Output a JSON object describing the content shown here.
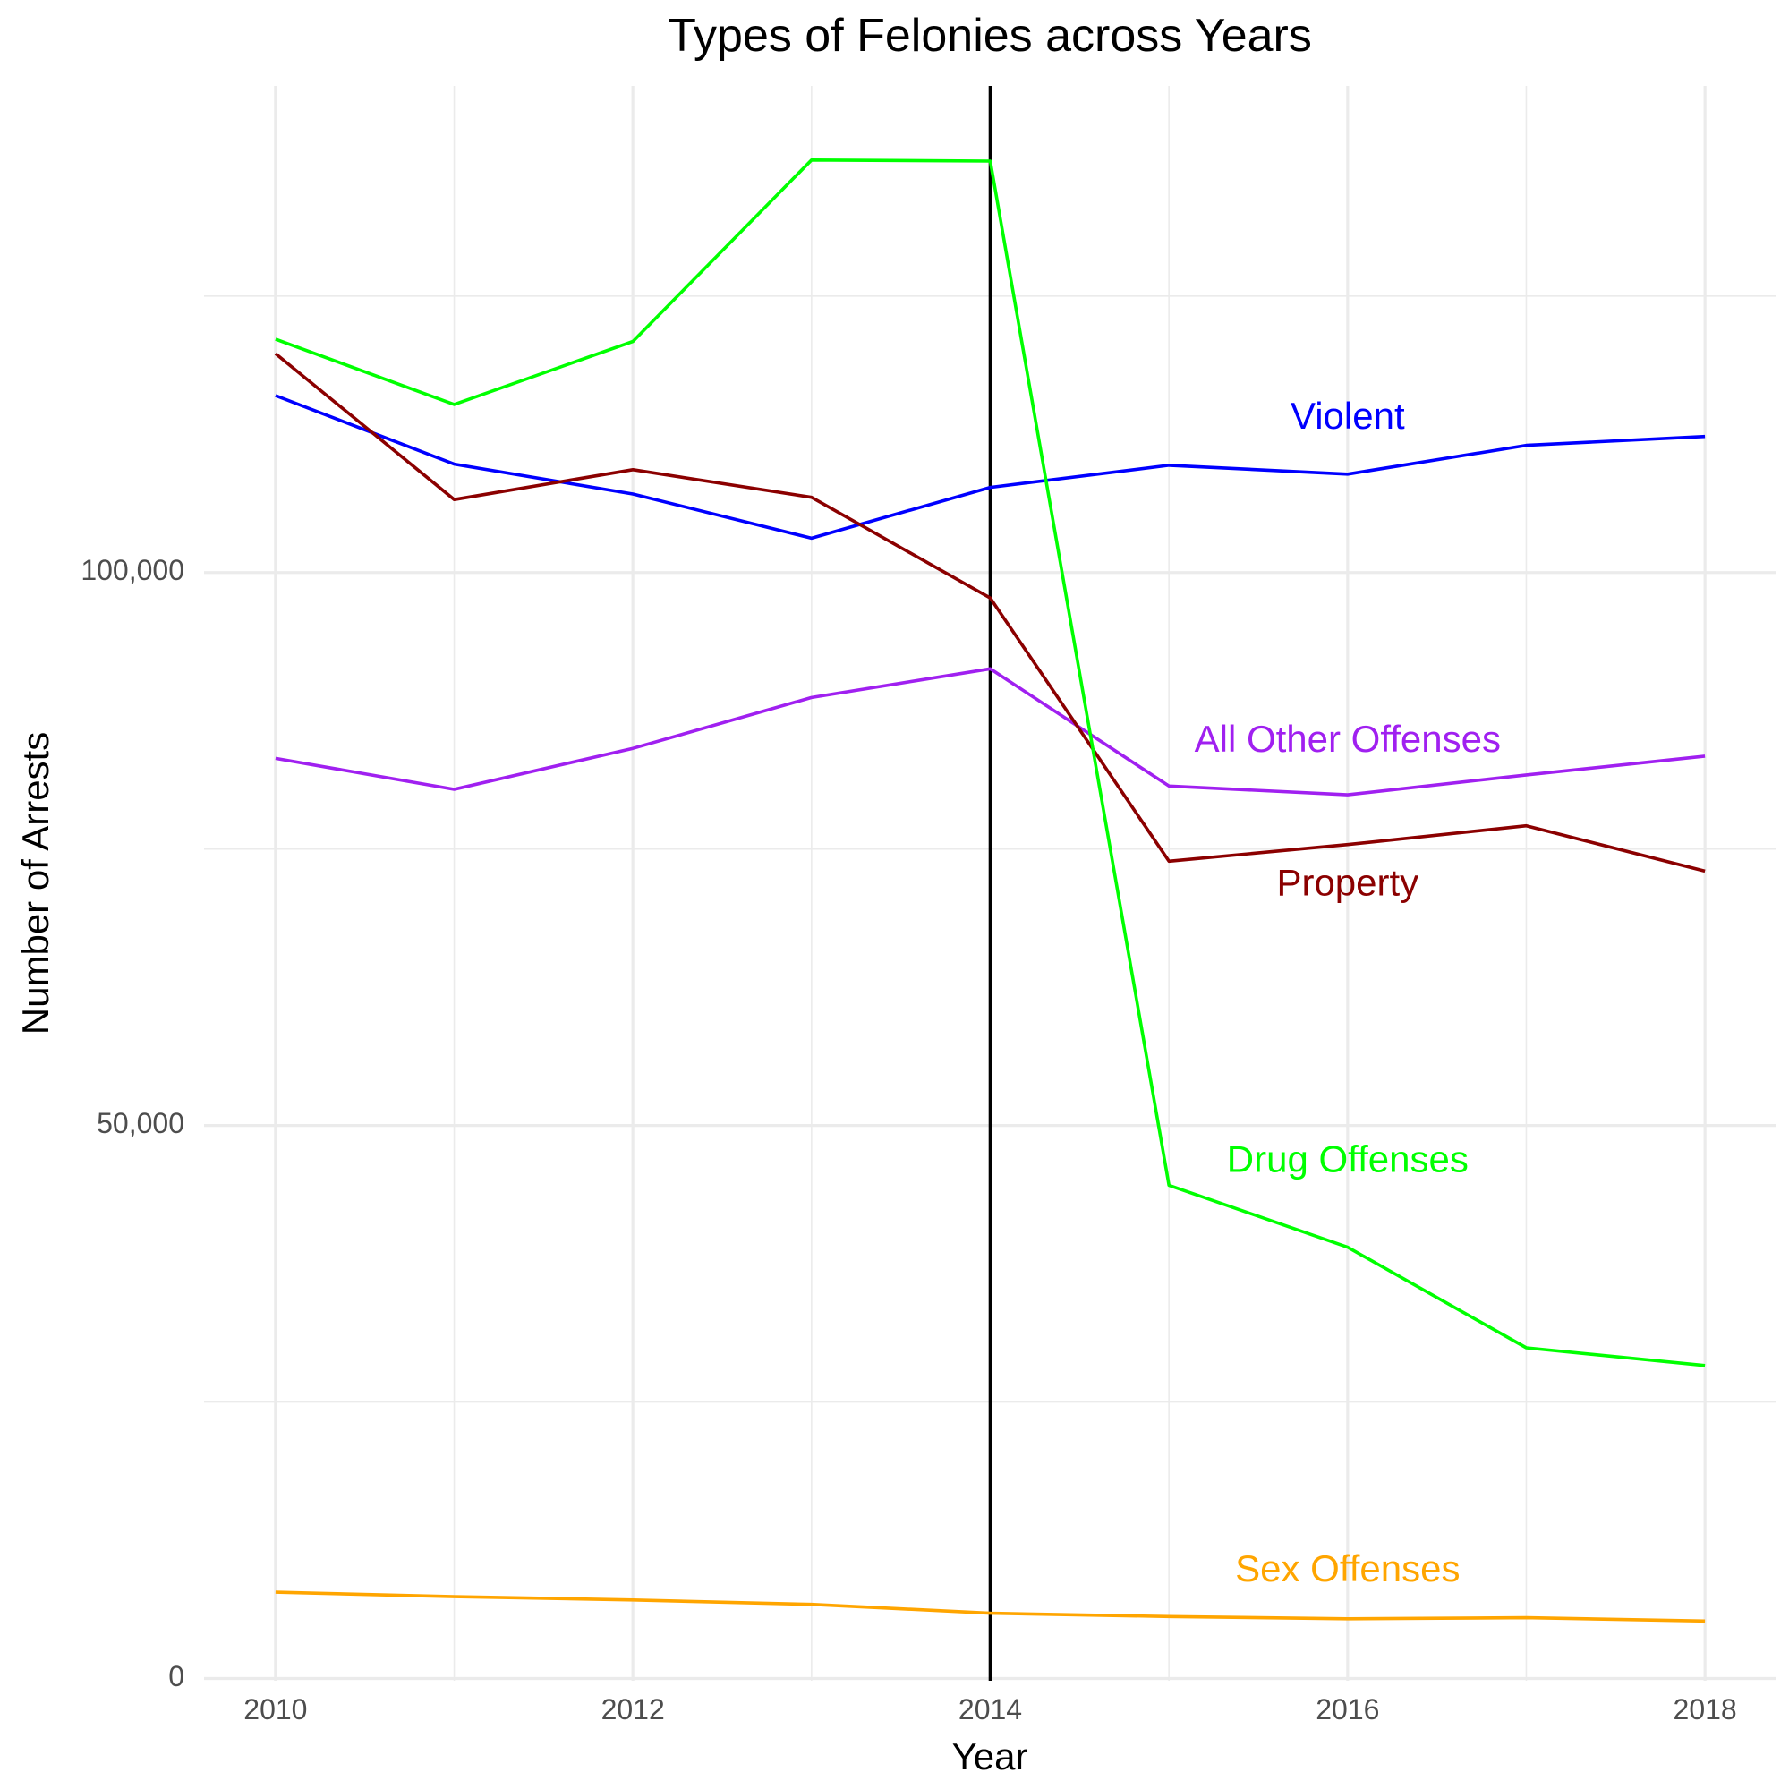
{
  "chart_data": {
    "type": "line",
    "title": "Types of Felonies across Years",
    "xlabel": "Year",
    "ylabel": "Number of Arrests",
    "x": [
      2010,
      2011,
      2012,
      2013,
      2014,
      2015,
      2016,
      2017,
      2018
    ],
    "x_ticks": [
      2010,
      2012,
      2014,
      2016,
      2018
    ],
    "x_tick_labels": [
      "2010",
      "2012",
      "2014",
      "2016",
      "2018"
    ],
    "xlim": [
      2009.6,
      2018.4
    ],
    "y_ticks": [
      0,
      50000,
      100000
    ],
    "y_tick_labels": [
      "0",
      "50,000",
      "100,000"
    ],
    "ylim": [
      -200,
      144000
    ],
    "grid": true,
    "legend": "none",
    "reference_line": {
      "x": 2014,
      "color": "#000000"
    },
    "series": [
      {
        "name": "Violent",
        "color": "#0000ff",
        "values": [
          116000,
          109800,
          107100,
          103100,
          107700,
          109700,
          108900,
          111500,
          112300
        ],
        "label_at": {
          "x": 2016,
          "y": 113900
        }
      },
      {
        "name": "All Other Offenses",
        "color": "#a020f0",
        "values": [
          83200,
          80400,
          84100,
          88700,
          91300,
          80700,
          79900,
          81700,
          83400
        ],
        "label_at": {
          "x": 2016,
          "y": 84700
        }
      },
      {
        "name": "Property",
        "color": "#8b0000",
        "values": [
          119800,
          106600,
          109300,
          106800,
          97700,
          73900,
          75400,
          77100,
          73000
        ],
        "label_at": {
          "x": 2016,
          "y": 71700
        }
      },
      {
        "name": "Drug Offenses",
        "color": "#00ff00",
        "values": [
          121100,
          115200,
          120900,
          137300,
          137200,
          44600,
          39000,
          29900,
          28300
        ],
        "label_at": {
          "x": 2016,
          "y": 46700
        }
      },
      {
        "name": "Sex Offenses",
        "color": "#ffa500",
        "values": [
          7800,
          7400,
          7100,
          6700,
          5900,
          5600,
          5400,
          5500,
          5200
        ],
        "label_at": {
          "x": 2016,
          "y": 9700
        }
      }
    ]
  }
}
